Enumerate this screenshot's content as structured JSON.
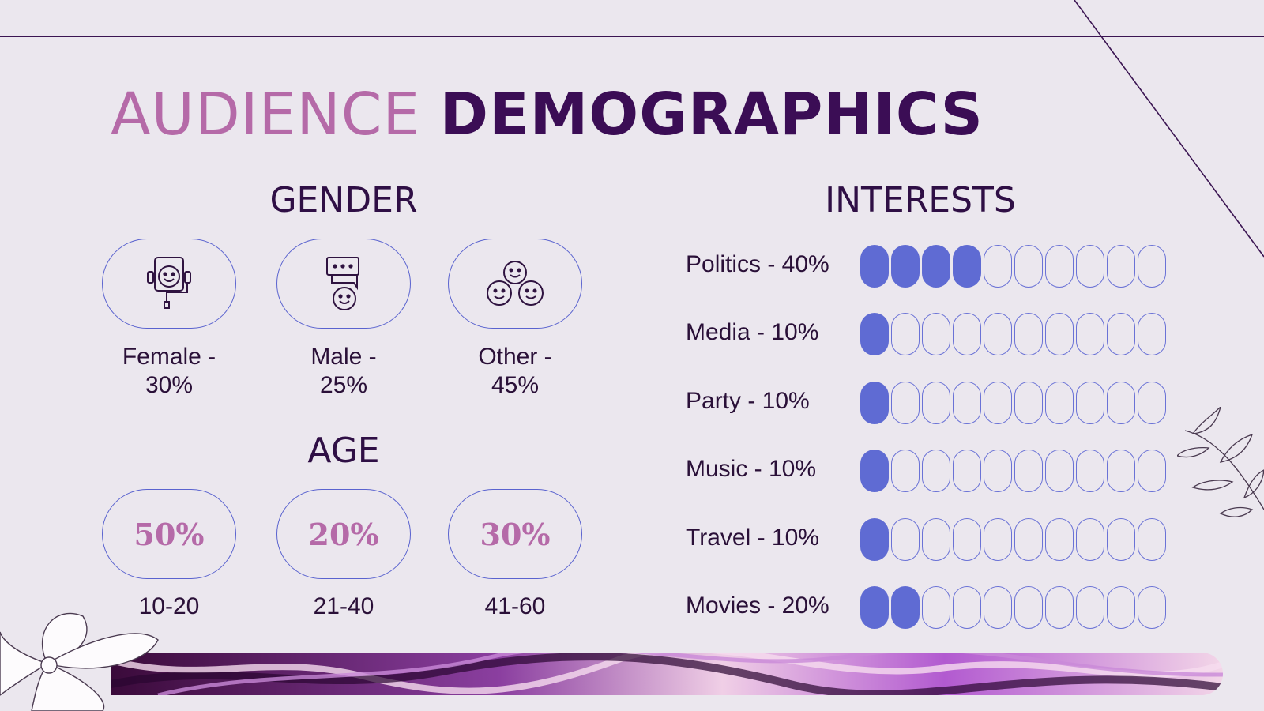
{
  "title": {
    "part1": "AUDIENCE",
    "part2": "DEMOGRAPHICS"
  },
  "gender": {
    "heading": "GENDER",
    "items": [
      {
        "label_line1": "Female -",
        "label_line2": "30%",
        "icon": "headset-face-icon"
      },
      {
        "label_line1": "Male -",
        "label_line2": "25%",
        "icon": "chat-face-icon"
      },
      {
        "label_line1": "Other -",
        "label_line2": "45%",
        "icon": "group-faces-icon"
      }
    ]
  },
  "age": {
    "heading": "AGE",
    "items": [
      {
        "value": "50%",
        "range": "10-20"
      },
      {
        "value": "20%",
        "range": "21-40"
      },
      {
        "value": "30%",
        "range": "41-60"
      }
    ]
  },
  "interests": {
    "heading": "INTERESTS",
    "segments_total": 10,
    "items": [
      {
        "label": "Politics - 40%",
        "filled": 4
      },
      {
        "label": "Media - 10%",
        "filled": 1
      },
      {
        "label": "Party - 10%",
        "filled": 1
      },
      {
        "label": "Music - 10%",
        "filled": 1
      },
      {
        "label": "Travel - 10%",
        "filled": 1
      },
      {
        "label": "Movies - 20%",
        "filled": 2
      }
    ]
  },
  "colors": {
    "background": "#ebe7ee",
    "title_light": "#b56aa8",
    "title_dark": "#3b0d55",
    "accent_blue": "#5f6bd3"
  }
}
